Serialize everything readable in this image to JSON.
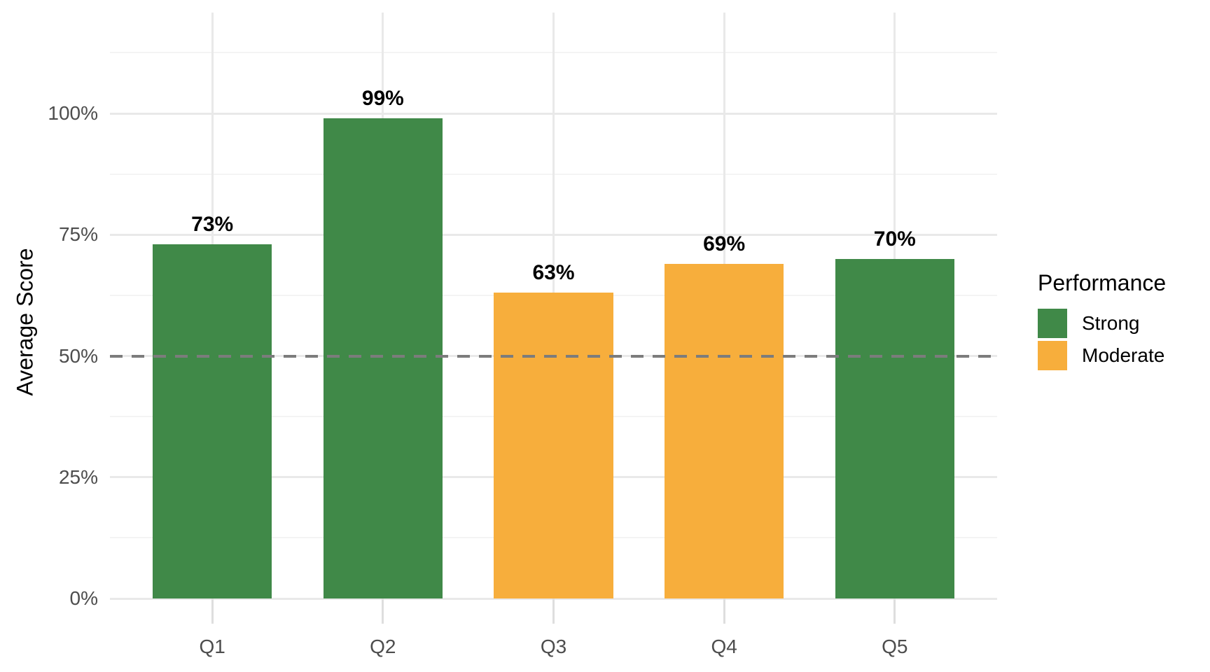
{
  "chart_data": {
    "type": "bar",
    "title": "",
    "xlabel": "",
    "ylabel": "Average Score",
    "categories": [
      "Q1",
      "Q2",
      "Q3",
      "Q4",
      "Q5"
    ],
    "series": [
      {
        "name": "Average Score",
        "values": [
          73,
          99,
          63,
          69,
          70
        ]
      }
    ],
    "bar_labels": [
      "73%",
      "99%",
      "63%",
      "69%",
      "70%"
    ],
    "performance": [
      "Strong",
      "Strong",
      "Moderate",
      "Moderate",
      "Strong"
    ],
    "colors": {
      "Strong": "#408948",
      "Moderate": "#F7AE3C"
    },
    "y_ticks": [
      {
        "value": 0,
        "label": "0%"
      },
      {
        "value": 25,
        "label": "25%"
      },
      {
        "value": 50,
        "label": "50%"
      },
      {
        "value": 75,
        "label": "75%"
      },
      {
        "value": 100,
        "label": "100%"
      }
    ],
    "ylim": [
      0,
      120
    ],
    "grid": true,
    "reference_line": {
      "value": 50,
      "style": "dashed",
      "color": "#7c7c7c"
    },
    "legend": {
      "title": "Performance",
      "position": "right",
      "items": [
        {
          "label": "Strong",
          "color": "#408948"
        },
        {
          "label": "Moderate",
          "color": "#F7AE3C"
        }
      ]
    }
  }
}
